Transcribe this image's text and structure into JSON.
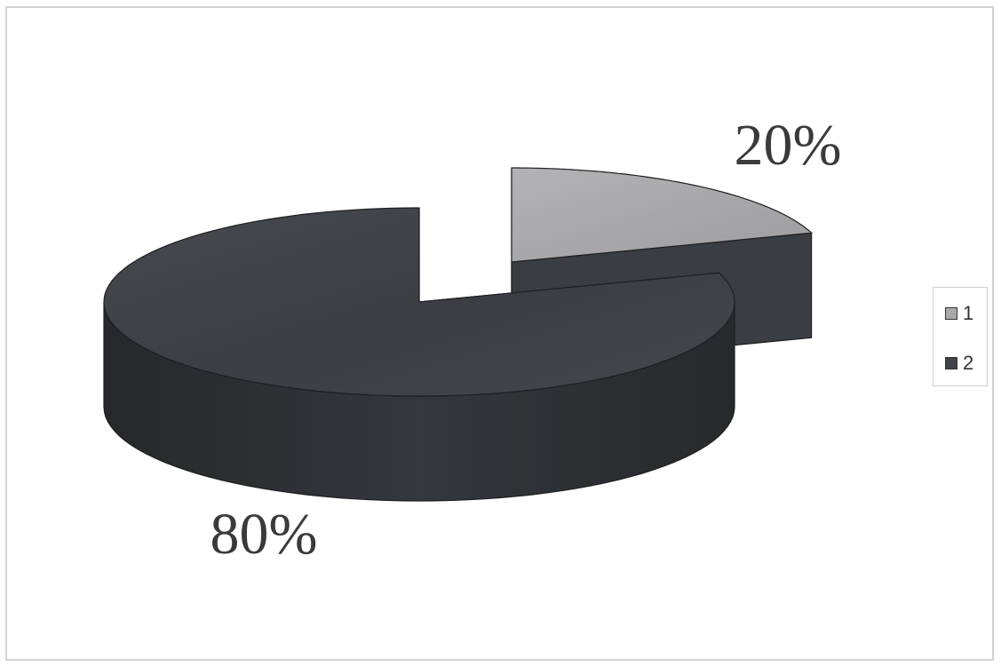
{
  "chart_data": {
    "type": "pie",
    "three_d": true,
    "exploded_slice": "1",
    "slices": [
      {
        "name": "1",
        "value": 20,
        "label": "20%",
        "color": "#a9a9ab"
      },
      {
        "name": "2",
        "value": 80,
        "label": "80%",
        "color": "#404347"
      }
    ],
    "legend": {
      "position": "right",
      "entries": [
        "1",
        "2"
      ]
    },
    "colors": {
      "slice_1_top": "#a9a9ab",
      "slice_1_side": "#3a3d41",
      "slice_2_top": "#404347",
      "slice_2_side": "#2b2d30"
    }
  }
}
